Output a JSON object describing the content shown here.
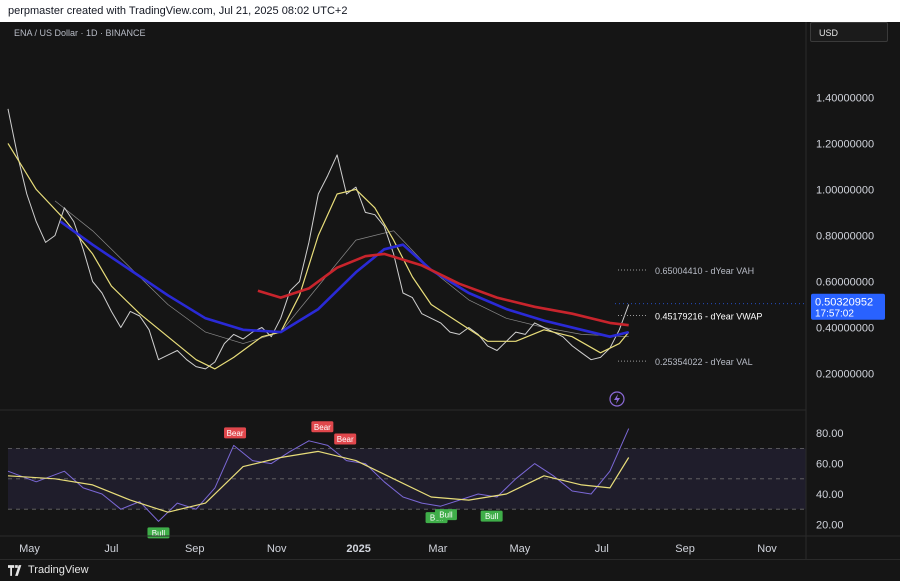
{
  "header": {
    "author_line": "perpmaster created with TradingView.com, Jul 21, 2025 08:02 UTC+2"
  },
  "chart_header": {
    "symbol_line": "ENA / US Dollar · 1D · BINANCE",
    "currency": "USD"
  },
  "footer": {
    "brand": "TradingView"
  },
  "colors": {
    "background": "#151515",
    "candles": "#cfcfcf",
    "yellow_ma": "#e8dd7a",
    "gray_ma": "#8a8a8a",
    "blue_ma": "#2a2ad6",
    "red_vwap": "#c8242c",
    "rsi_line": "#7b68d6",
    "rsi_ma": "#e8dd7a",
    "price_badge": "#2962ff",
    "bear_label": "#e0474c",
    "bull_label": "#3fae49"
  },
  "chart_data": [
    {
      "type": "line",
      "title": "ENA / US Dollar · 1D · BINANCE",
      "y_scale": "linear",
      "ylim": [
        0.05,
        1.58
      ],
      "y_ticks": [
        "1.40000000",
        "1.20000000",
        "1.00000000",
        "0.80000000",
        "0.60000000",
        "0.40000000",
        "0.20000000"
      ],
      "y_tick_values": [
        1.4,
        1.2,
        1.0,
        0.8,
        0.6,
        0.4,
        0.2
      ],
      "x_range": [
        "2024-04-15",
        "2025-11-30"
      ],
      "x_ticks": [
        {
          "label": "May",
          "date": "2024-05-01"
        },
        {
          "label": "Jul",
          "date": "2024-07-01"
        },
        {
          "label": "Sep",
          "date": "2024-09-01"
        },
        {
          "label": "Nov",
          "date": "2024-11-01"
        },
        {
          "label": "2025",
          "date": "2025-01-01"
        },
        {
          "label": "Mar",
          "date": "2025-03-01"
        },
        {
          "label": "May",
          "date": "2025-05-01"
        },
        {
          "label": "Jul",
          "date": "2025-07-01"
        },
        {
          "label": "Sep",
          "date": "2025-09-01"
        },
        {
          "label": "Nov",
          "date": "2025-11-01"
        }
      ],
      "series": [
        {
          "key": "price",
          "points": [
            [
              "2024-04-15",
              1.35
            ],
            [
              "2024-04-22",
              1.15
            ],
            [
              "2024-04-29",
              0.98
            ],
            [
              "2024-05-06",
              0.86
            ],
            [
              "2024-05-13",
              0.77
            ],
            [
              "2024-05-20",
              0.8
            ],
            [
              "2024-05-27",
              0.92
            ],
            [
              "2024-06-03",
              0.86
            ],
            [
              "2024-06-10",
              0.74
            ],
            [
              "2024-06-17",
              0.6
            ],
            [
              "2024-06-24",
              0.55
            ],
            [
              "2024-07-01",
              0.47
            ],
            [
              "2024-07-08",
              0.4
            ],
            [
              "2024-07-15",
              0.47
            ],
            [
              "2024-07-22",
              0.45
            ],
            [
              "2024-07-29",
              0.39
            ],
            [
              "2024-08-05",
              0.26
            ],
            [
              "2024-08-12",
              0.28
            ],
            [
              "2024-08-19",
              0.3
            ],
            [
              "2024-08-26",
              0.26
            ],
            [
              "2024-09-02",
              0.23
            ],
            [
              "2024-09-09",
              0.22
            ],
            [
              "2024-09-16",
              0.25
            ],
            [
              "2024-09-23",
              0.33
            ],
            [
              "2024-09-30",
              0.37
            ],
            [
              "2024-10-07",
              0.35
            ],
            [
              "2024-10-14",
              0.38
            ],
            [
              "2024-10-21",
              0.4
            ],
            [
              "2024-10-28",
              0.36
            ],
            [
              "2024-11-04",
              0.44
            ],
            [
              "2024-11-11",
              0.56
            ],
            [
              "2024-11-18",
              0.6
            ],
            [
              "2024-11-25",
              0.77
            ],
            [
              "2024-12-02",
              0.98
            ],
            [
              "2024-12-09",
              1.06
            ],
            [
              "2024-12-16",
              1.15
            ],
            [
              "2024-12-23",
              0.98
            ],
            [
              "2024-12-30",
              1.01
            ],
            [
              "2025-01-06",
              0.9
            ],
            [
              "2025-01-13",
              0.89
            ],
            [
              "2025-01-20",
              0.84
            ],
            [
              "2025-01-27",
              0.72
            ],
            [
              "2025-02-03",
              0.55
            ],
            [
              "2025-02-10",
              0.53
            ],
            [
              "2025-02-17",
              0.46
            ],
            [
              "2025-02-24",
              0.44
            ],
            [
              "2025-03-03",
              0.42
            ],
            [
              "2025-03-10",
              0.38
            ],
            [
              "2025-03-17",
              0.37
            ],
            [
              "2025-03-24",
              0.4
            ],
            [
              "2025-03-31",
              0.37
            ],
            [
              "2025-04-07",
              0.32
            ],
            [
              "2025-04-14",
              0.3
            ],
            [
              "2025-04-21",
              0.34
            ],
            [
              "2025-04-28",
              0.38
            ],
            [
              "2025-05-05",
              0.37
            ],
            [
              "2025-05-12",
              0.42
            ],
            [
              "2025-05-19",
              0.4
            ],
            [
              "2025-05-26",
              0.38
            ],
            [
              "2025-06-02",
              0.36
            ],
            [
              "2025-06-09",
              0.32
            ],
            [
              "2025-06-16",
              0.29
            ],
            [
              "2025-06-23",
              0.26
            ],
            [
              "2025-06-30",
              0.27
            ],
            [
              "2025-07-07",
              0.31
            ],
            [
              "2025-07-14",
              0.39
            ],
            [
              "2025-07-21",
              0.5
            ]
          ]
        },
        {
          "key": "yellow_ma",
          "points": [
            [
              "2024-04-15",
              1.2
            ],
            [
              "2024-05-06",
              1.0
            ],
            [
              "2024-05-27",
              0.87
            ],
            [
              "2024-06-17",
              0.72
            ],
            [
              "2024-07-01",
              0.58
            ],
            [
              "2024-07-22",
              0.46
            ],
            [
              "2024-08-12",
              0.36
            ],
            [
              "2024-09-02",
              0.26
            ],
            [
              "2024-09-16",
              0.22
            ],
            [
              "2024-09-30",
              0.27
            ],
            [
              "2024-10-21",
              0.36
            ],
            [
              "2024-11-04",
              0.38
            ],
            [
              "2024-11-18",
              0.54
            ],
            [
              "2024-12-02",
              0.8
            ],
            [
              "2024-12-16",
              0.98
            ],
            [
              "2024-12-30",
              1.0
            ],
            [
              "2025-01-13",
              0.92
            ],
            [
              "2025-01-27",
              0.78
            ],
            [
              "2025-02-10",
              0.62
            ],
            [
              "2025-02-24",
              0.5
            ],
            [
              "2025-03-17",
              0.42
            ],
            [
              "2025-04-07",
              0.34
            ],
            [
              "2025-04-28",
              0.34
            ],
            [
              "2025-05-19",
              0.39
            ],
            [
              "2025-06-09",
              0.36
            ],
            [
              "2025-06-30",
              0.29
            ],
            [
              "2025-07-14",
              0.33
            ],
            [
              "2025-07-21",
              0.38
            ]
          ]
        },
        {
          "key": "gray_ma",
          "points": [
            [
              "2024-05-20",
              0.95
            ],
            [
              "2024-06-17",
              0.82
            ],
            [
              "2024-07-15",
              0.66
            ],
            [
              "2024-08-12",
              0.5
            ],
            [
              "2024-09-09",
              0.38
            ],
            [
              "2024-10-07",
              0.33
            ],
            [
              "2024-11-04",
              0.38
            ],
            [
              "2024-12-02",
              0.58
            ],
            [
              "2024-12-30",
              0.78
            ],
            [
              "2025-01-27",
              0.82
            ],
            [
              "2025-02-24",
              0.65
            ],
            [
              "2025-03-24",
              0.52
            ],
            [
              "2025-04-21",
              0.44
            ],
            [
              "2025-05-19",
              0.4
            ],
            [
              "2025-06-16",
              0.37
            ],
            [
              "2025-07-21",
              0.36
            ]
          ]
        },
        {
          "key": "blue_ma",
          "points": [
            [
              "2024-05-24",
              0.86
            ],
            [
              "2024-06-17",
              0.76
            ],
            [
              "2024-07-15",
              0.65
            ],
            [
              "2024-08-12",
              0.54
            ],
            [
              "2024-09-09",
              0.44
            ],
            [
              "2024-10-07",
              0.39
            ],
            [
              "2024-11-04",
              0.38
            ],
            [
              "2024-12-02",
              0.48
            ],
            [
              "2024-12-30",
              0.64
            ],
            [
              "2025-01-20",
              0.74
            ],
            [
              "2025-02-03",
              0.76
            ],
            [
              "2025-02-24",
              0.65
            ],
            [
              "2025-03-24",
              0.55
            ],
            [
              "2025-04-21",
              0.48
            ],
            [
              "2025-05-19",
              0.43
            ],
            [
              "2025-06-16",
              0.39
            ],
            [
              "2025-07-07",
              0.36
            ],
            [
              "2025-07-21",
              0.38
            ]
          ]
        },
        {
          "key": "red_vwap",
          "points": [
            [
              "2024-10-18",
              0.56
            ],
            [
              "2024-11-04",
              0.53
            ],
            [
              "2024-11-25",
              0.57
            ],
            [
              "2024-12-16",
              0.66
            ],
            [
              "2025-01-06",
              0.71
            ],
            [
              "2025-01-20",
              0.72
            ],
            [
              "2025-02-17",
              0.67
            ],
            [
              "2025-03-17",
              0.59
            ],
            [
              "2025-04-14",
              0.53
            ],
            [
              "2025-05-12",
              0.49
            ],
            [
              "2025-06-09",
              0.46
            ],
            [
              "2025-07-07",
              0.42
            ],
            [
              "2025-07-21",
              0.41
            ]
          ]
        }
      ],
      "annotations": [
        {
          "label": "0.65004410 - dYear VAH",
          "value": 0.6500441
        },
        {
          "label": "0.45179216 - dYear VWAP",
          "value": 0.45179216
        },
        {
          "label": "0.25354022 - dYear VAL",
          "value": 0.25354022
        }
      ],
      "last_price": {
        "value": "0.50320952",
        "countdown": "17:57:02"
      }
    },
    {
      "type": "line",
      "ylim": [
        15,
        90
      ],
      "y_ticks": [
        "80.00",
        "60.00",
        "40.00",
        "20.00"
      ],
      "y_tick_values": [
        80,
        60,
        40,
        20
      ],
      "levels": {
        "upper": 70,
        "middle": 50,
        "lower": 30
      },
      "series": [
        {
          "key": "rsi",
          "points": [
            [
              "2024-04-15",
              55
            ],
            [
              "2024-05-06",
              48
            ],
            [
              "2024-05-27",
              55
            ],
            [
              "2024-06-10",
              44
            ],
            [
              "2024-06-24",
              40
            ],
            [
              "2024-07-08",
              30
            ],
            [
              "2024-07-22",
              35
            ],
            [
              "2024-08-05",
              22
            ],
            [
              "2024-08-19",
              34
            ],
            [
              "2024-09-02",
              30
            ],
            [
              "2024-09-16",
              44
            ],
            [
              "2024-09-30",
              72
            ],
            [
              "2024-10-14",
              62
            ],
            [
              "2024-10-28",
              60
            ],
            [
              "2024-11-11",
              68
            ],
            [
              "2024-11-25",
              75
            ],
            [
              "2024-12-09",
              72
            ],
            [
              "2024-12-23",
              62
            ],
            [
              "2025-01-06",
              60
            ],
            [
              "2025-01-20",
              48
            ],
            [
              "2025-02-03",
              38
            ],
            [
              "2025-02-17",
              34
            ],
            [
              "2025-03-03",
              32
            ],
            [
              "2025-03-17",
              36
            ],
            [
              "2025-03-31",
              40
            ],
            [
              "2025-04-14",
              38
            ],
            [
              "2025-04-28",
              50
            ],
            [
              "2025-05-12",
              60
            ],
            [
              "2025-05-26",
              52
            ],
            [
              "2025-06-09",
              42
            ],
            [
              "2025-06-23",
              40
            ],
            [
              "2025-07-07",
              55
            ],
            [
              "2025-07-21",
              83
            ]
          ]
        },
        {
          "key": "rsi_ma",
          "points": [
            [
              "2024-04-15",
              52
            ],
            [
              "2024-05-20",
              50
            ],
            [
              "2024-06-17",
              46
            ],
            [
              "2024-07-15",
              36
            ],
            [
              "2024-08-12",
              28
            ],
            [
              "2024-09-09",
              34
            ],
            [
              "2024-10-07",
              58
            ],
            [
              "2024-11-04",
              64
            ],
            [
              "2024-12-02",
              68
            ],
            [
              "2024-12-30",
              62
            ],
            [
              "2025-01-27",
              50
            ],
            [
              "2025-02-24",
              38
            ],
            [
              "2025-03-24",
              36
            ],
            [
              "2025-04-21",
              40
            ],
            [
              "2025-05-19",
              52
            ],
            [
              "2025-06-16",
              46
            ],
            [
              "2025-07-07",
              44
            ],
            [
              "2025-07-21",
              64
            ]
          ]
        }
      ],
      "signals": [
        {
          "label": "Bull",
          "date": "2024-08-05",
          "value": 22
        },
        {
          "label": "Bear",
          "date": "2024-10-01",
          "value": 72
        },
        {
          "label": "Bear",
          "date": "2024-12-05",
          "value": 76
        },
        {
          "label": "Bear",
          "date": "2024-12-22",
          "value": 68
        },
        {
          "label": "Bull",
          "date": "2025-02-28",
          "value": 32
        },
        {
          "label": "Bull",
          "date": "2025-03-07",
          "value": 34
        },
        {
          "label": "Bull",
          "date": "2025-04-10",
          "value": 33
        }
      ]
    }
  ]
}
